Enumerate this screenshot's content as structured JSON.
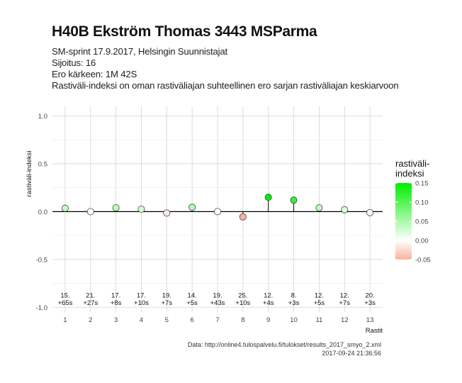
{
  "title": "H40B Ekström Thomas 3443 MSParma",
  "subtitles": [
    "SM-sprint 17.9.2017, Helsingin Suunnistajat",
    "Sijoitus: 16",
    "Ero kärkeen: 1M 42S",
    "Rastiväli-indeksi on oman rastiväliajan suhteellinen ero sarjan rastiväliajan keskiarvoon"
  ],
  "caption": {
    "source": "Data: http://online4.tulospalvelu.fi/tulokset/results_2017_smyo_2.xml",
    "timestamp": "2017-09-24 21:36:56"
  },
  "legend": {
    "title": "rastiväli-\nindeksi",
    "ticks": [
      "0.15",
      "0.10",
      "0.05",
      "0.00",
      "-0.05"
    ]
  },
  "colors": {
    "high": "#00ee00",
    "mid": "#ffffff",
    "low": "#f7b39d",
    "grid_major": "#d4d4d4",
    "grid_minor": "#ebebeb",
    "baseline": "#000000"
  },
  "chart_data": {
    "type": "scatter",
    "xlabel": "Rastit",
    "ylabel": "rastiväli-indeksi",
    "xlim": [
      0.5,
      13.5
    ],
    "ylim": [
      -1.05,
      1.1
    ],
    "x_ticks": [
      "1",
      "2",
      "3",
      "4",
      "5",
      "6",
      "7",
      "8",
      "9",
      "10",
      "11",
      "12",
      "13"
    ],
    "y_ticks": [
      "1.0",
      "0.5",
      "0.0",
      "-0.5",
      "-1.0"
    ],
    "y_tick_values": [
      1.0,
      0.5,
      0.0,
      -0.5,
      -1.0
    ],
    "color_scale_range": [
      -0.05,
      0.15
    ],
    "baseline": 0,
    "annotation_y": -0.92,
    "points": [
      {
        "x": 1,
        "y": 0.035,
        "label": "15.\n+65s"
      },
      {
        "x": 2,
        "y": 0.0,
        "label": "21.\n+27s"
      },
      {
        "x": 3,
        "y": 0.04,
        "label": "17.\n+8s"
      },
      {
        "x": 4,
        "y": 0.025,
        "label": "17.\n+10s"
      },
      {
        "x": 5,
        "y": -0.015,
        "label": "19.\n+7s"
      },
      {
        "x": 6,
        "y": 0.045,
        "label": "14.\n+5s"
      },
      {
        "x": 7,
        "y": 0.0,
        "label": "19.\n+43s"
      },
      {
        "x": 8,
        "y": -0.055,
        "label": "25.\n+10s"
      },
      {
        "x": 9,
        "y": 0.15,
        "label": "12.\n+4s"
      },
      {
        "x": 10,
        "y": 0.12,
        "label": "8.\n+3s"
      },
      {
        "x": 11,
        "y": 0.04,
        "label": "12.\n+5s"
      },
      {
        "x": 12,
        "y": 0.02,
        "label": "12.\n+7s"
      },
      {
        "x": 13,
        "y": -0.01,
        "label": "20.\n+3s"
      }
    ],
    "grid": true,
    "legend_position": "right"
  }
}
